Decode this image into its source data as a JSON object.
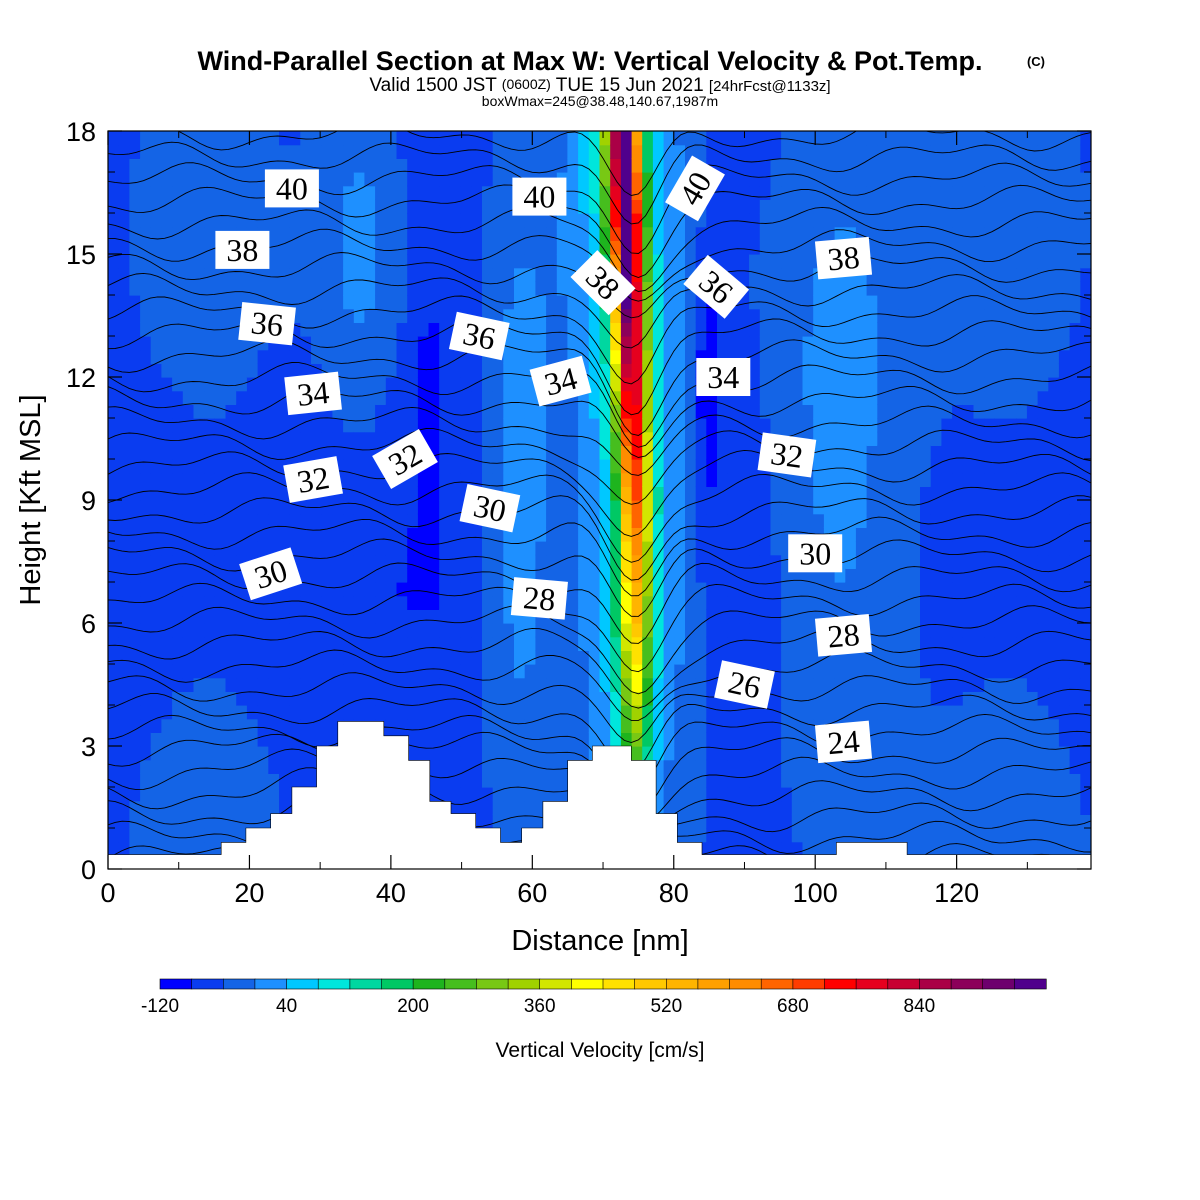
{
  "title": "Wind-Parallel Section at Max W: Vertical Velocity & Pot.Temp.",
  "title_mark": "(C)",
  "subtitle_parts": [
    "Valid 1500 JST",
    "(0600Z)",
    "TUE 15 Jun 2021",
    "[24hrFcst@1133z]"
  ],
  "subtitle2": "boxWmax=245@38.48,140.67,1987m",
  "chart_data": {
    "type": "heatmap",
    "xlabel": "Distance [nm]",
    "ylabel": "Height [Kft MSL]",
    "xlim": [
      0,
      139
    ],
    "ylim": [
      0,
      18
    ],
    "x_ticks": [
      "0",
      "20",
      "40",
      "60",
      "80",
      "100",
      "120"
    ],
    "y_ticks": [
      "0",
      "3",
      "6",
      "9",
      "12",
      "15",
      "18"
    ],
    "colorbar": {
      "label": "Vertical Velocity [cm/s]",
      "levels": [
        -120,
        -80,
        -40,
        0,
        40,
        80,
        120,
        160,
        200,
        240,
        280,
        320,
        360,
        400,
        440,
        480,
        520,
        560,
        600,
        640,
        680,
        720,
        760,
        800,
        840,
        880,
        920,
        960
      ],
      "colors": [
        "#0000ff",
        "#0a3cf0",
        "#1464e6",
        "#1e90ff",
        "#00c8ff",
        "#00e6dc",
        "#00d7a0",
        "#00c864",
        "#1eb41e",
        "#46be1e",
        "#78c814",
        "#a0d200",
        "#d2e600",
        "#ffff00",
        "#ffe100",
        "#ffc800",
        "#ffb400",
        "#ffa000",
        "#ff8c00",
        "#ff6400",
        "#ff3c00",
        "#ff0000",
        "#e6001e",
        "#c80032",
        "#aa0046",
        "#8c005a",
        "#6e006e",
        "#50008c"
      ],
      "tick_labels": [
        "-120",
        "40",
        "200",
        "360",
        "520",
        "680",
        "840"
      ]
    },
    "contour_labels": [
      "40",
      "40",
      "40",
      "38",
      "38",
      "38",
      "36",
      "36",
      "36",
      "34",
      "34",
      "34",
      "32",
      "32",
      "32",
      "30",
      "30",
      "30",
      "28",
      "28",
      "26",
      "24"
    ],
    "terrain_profile_kft": [
      [
        0,
        0.35
      ],
      [
        16,
        0.35
      ],
      [
        16,
        0.65
      ],
      [
        19.5,
        0.65
      ],
      [
        19.5,
        1.0
      ],
      [
        23,
        1.0
      ],
      [
        23,
        1.35
      ],
      [
        26,
        1.35
      ],
      [
        26,
        2.0
      ],
      [
        29.5,
        2.0
      ],
      [
        29.5,
        3.0
      ],
      [
        32.5,
        3.0
      ],
      [
        32.5,
        3.6
      ],
      [
        39,
        3.6
      ],
      [
        39,
        3.25
      ],
      [
        42.5,
        3.25
      ],
      [
        42.5,
        2.65
      ],
      [
        45.5,
        2.65
      ],
      [
        45.5,
        1.65
      ],
      [
        48.5,
        1.65
      ],
      [
        48.5,
        1.35
      ],
      [
        52,
        1.35
      ],
      [
        52,
        1.0
      ],
      [
        55.5,
        1.0
      ],
      [
        55.5,
        0.65
      ],
      [
        58.5,
        0.65
      ],
      [
        58.5,
        1.0
      ],
      [
        61.5,
        1.0
      ],
      [
        61.5,
        1.65
      ],
      [
        65,
        1.65
      ],
      [
        65,
        2.65
      ],
      [
        68.5,
        2.65
      ],
      [
        68.5,
        3.0
      ],
      [
        74,
        3.0
      ],
      [
        74,
        2.65
      ],
      [
        77.5,
        2.65
      ],
      [
        77.5,
        1.35
      ],
      [
        80.5,
        1.35
      ],
      [
        80.5,
        0.65
      ],
      [
        84,
        0.65
      ],
      [
        84,
        0.35
      ],
      [
        103,
        0.35
      ],
      [
        103,
        0.65
      ],
      [
        113,
        0.65
      ],
      [
        113,
        0.35
      ],
      [
        139,
        0.35
      ]
    ]
  }
}
